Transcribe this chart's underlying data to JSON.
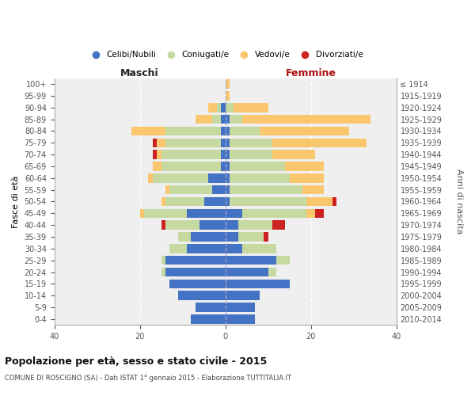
{
  "age_groups": [
    "0-4",
    "5-9",
    "10-14",
    "15-19",
    "20-24",
    "25-29",
    "30-34",
    "35-39",
    "40-44",
    "45-49",
    "50-54",
    "55-59",
    "60-64",
    "65-69",
    "70-74",
    "75-79",
    "80-84",
    "85-89",
    "90-94",
    "95-99",
    "100+"
  ],
  "birth_years": [
    "2010-2014",
    "2005-2009",
    "2000-2004",
    "1995-1999",
    "1990-1994",
    "1985-1989",
    "1980-1984",
    "1975-1979",
    "1970-1974",
    "1965-1969",
    "1960-1964",
    "1955-1959",
    "1950-1954",
    "1945-1949",
    "1940-1944",
    "1935-1939",
    "1930-1934",
    "1925-1929",
    "1920-1924",
    "1915-1919",
    "≤ 1914"
  ],
  "colors": {
    "celibe": "#4472C4",
    "coniugato": "#C5D9A0",
    "vedovo": "#FAC76E",
    "divorziato": "#CC2222"
  },
  "males": {
    "celibe": [
      8,
      7,
      11,
      13,
      14,
      14,
      9,
      8,
      6,
      9,
      5,
      3,
      4,
      1,
      1,
      1,
      1,
      1,
      1,
      0,
      0
    ],
    "coniugato": [
      0,
      0,
      0,
      0,
      1,
      1,
      4,
      3,
      8,
      10,
      9,
      10,
      13,
      14,
      14,
      13,
      13,
      2,
      1,
      0,
      0
    ],
    "vedovo": [
      0,
      0,
      0,
      0,
      0,
      0,
      0,
      0,
      0,
      1,
      1,
      1,
      1,
      2,
      1,
      2,
      8,
      4,
      2,
      0,
      0
    ],
    "divorziato": [
      0,
      0,
      0,
      0,
      0,
      0,
      0,
      0,
      1,
      0,
      0,
      0,
      0,
      0,
      1,
      1,
      0,
      0,
      0,
      0,
      0
    ]
  },
  "females": {
    "nubile": [
      7,
      7,
      8,
      15,
      10,
      12,
      4,
      3,
      3,
      4,
      1,
      1,
      1,
      1,
      1,
      1,
      1,
      1,
      0,
      0,
      0
    ],
    "coniugata": [
      0,
      0,
      0,
      0,
      2,
      3,
      8,
      6,
      8,
      15,
      18,
      17,
      14,
      13,
      10,
      10,
      7,
      3,
      2,
      0,
      0
    ],
    "vedova": [
      0,
      0,
      0,
      0,
      0,
      0,
      0,
      0,
      0,
      2,
      6,
      5,
      8,
      9,
      10,
      22,
      21,
      30,
      8,
      1,
      1
    ],
    "divorziata": [
      0,
      0,
      0,
      0,
      0,
      0,
      0,
      1,
      3,
      2,
      1,
      0,
      0,
      0,
      0,
      0,
      0,
      0,
      0,
      0,
      0
    ]
  },
  "xlim": 40,
  "title": "Popolazione per età, sesso e stato civile - 2015",
  "subtitle": "COMUNE DI ROSCIGNO (SA) - Dati ISTAT 1° gennaio 2015 - Elaborazione TUTTITALIA.IT",
  "ylabel_left": "Fasce di età",
  "ylabel_right": "Anni di nascita",
  "xlabel_males": "Maschi",
  "xlabel_females": "Femmine",
  "legend_labels": [
    "Celibi/Nubili",
    "Coniugati/e",
    "Vedovi/e",
    "Divorziati/e"
  ],
  "background_color": "#FFFFFF",
  "plot_bg_color": "#EFEFEF"
}
